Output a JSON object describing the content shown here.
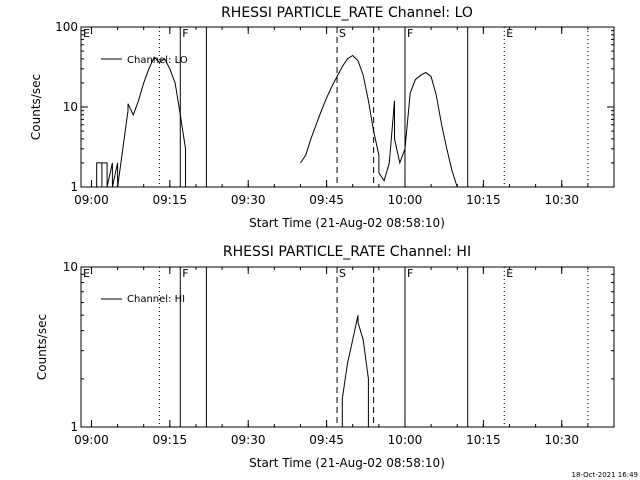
{
  "timestamp": "18-Oct-2021 16:49",
  "chart_data": [
    {
      "type": "line",
      "title": "RHESSI PARTICLE_RATE Channel: LO",
      "xlabel": "Start Time (21-Aug-02 08:58:10)",
      "ylabel": "Counts/sec",
      "scale": "log",
      "ylim": [
        1,
        100
      ],
      "yticks": [
        {
          "value": 1,
          "label": "1"
        },
        {
          "value": 10,
          "label": "10"
        },
        {
          "value": 100,
          "label": "100"
        }
      ],
      "xlim": [
        "08:58",
        "10:40"
      ],
      "xticks": [
        "09:00",
        "09:15",
        "09:30",
        "09:45",
        "10:00",
        "10:15",
        "10:30"
      ],
      "legend": {
        "label": "Channel: LO",
        "placement": "top-left"
      },
      "markers": [
        {
          "time": "08:58",
          "style": "none",
          "label": "E"
        },
        {
          "time": "09:13",
          "style": "dotted",
          "label": ""
        },
        {
          "time": "09:17",
          "style": "solid",
          "label": "F"
        },
        {
          "time": "09:22",
          "style": "solid",
          "label": ""
        },
        {
          "time": "09:47",
          "style": "dashed",
          "label": "S"
        },
        {
          "time": "09:54",
          "style": "dashed",
          "label": ""
        },
        {
          "time": "10:00",
          "style": "solid",
          "label": "F"
        },
        {
          "time": "10:12",
          "style": "solid",
          "label": ""
        },
        {
          "time": "10:19",
          "style": "dotted",
          "label": "E"
        },
        {
          "time": "10:35",
          "style": "dotted",
          "label": ""
        }
      ],
      "series": [
        {
          "name": "Channel: LO",
          "segments": [
            [
              [
                "09:01",
                1
              ],
              [
                "09:01",
                2
              ],
              [
                "09:02",
                2
              ],
              [
                "09:02",
                1
              ],
              [
                "09:02",
                2
              ],
              [
                "09:03",
                2
              ],
              [
                "09:03",
                1
              ],
              [
                "09:04",
                2
              ],
              [
                "09:04",
                1
              ],
              [
                "09:05",
                2
              ],
              [
                "09:05",
                1
              ],
              [
                "09:06",
                3
              ],
              [
                "09:07",
                9
              ],
              [
                "09:07",
                11
              ],
              [
                "09:08",
                8
              ],
              [
                "09:09",
                12
              ],
              [
                "09:10",
                20
              ],
              [
                "09:11",
                30
              ],
              [
                "09:12",
                42
              ],
              [
                "09:13",
                36
              ],
              [
                "09:14",
                40
              ],
              [
                "09:15",
                30
              ],
              [
                "09:16",
                20
              ],
              [
                "09:17",
                8
              ],
              [
                "09:18",
                3
              ],
              [
                "09:18",
                1
              ]
            ],
            [
              [
                "09:40",
                2
              ],
              [
                "09:41",
                2.5
              ],
              [
                "09:42",
                4
              ],
              [
                "09:43",
                6
              ],
              [
                "09:44",
                9
              ],
              [
                "09:45",
                13
              ],
              [
                "09:46",
                18
              ],
              [
                "09:47",
                24
              ],
              [
                "09:48",
                32
              ],
              [
                "09:49",
                40
              ],
              [
                "09:50",
                44
              ],
              [
                "09:51",
                38
              ],
              [
                "09:52",
                25
              ],
              [
                "09:53",
                12
              ],
              [
                "09:54",
                5
              ],
              [
                "09:55",
                2.5
              ],
              [
                "09:55",
                1.5
              ],
              [
                "09:56",
                1.2
              ],
              [
                "09:57",
                2
              ],
              [
                "09:58",
                12
              ],
              [
                "09:58",
                4
              ],
              [
                "09:59",
                2
              ],
              [
                "10:00",
                3
              ],
              [
                "10:01",
                15
              ],
              [
                "10:02",
                22
              ],
              [
                "10:03",
                25
              ],
              [
                "10:04",
                27
              ],
              [
                "10:05",
                24
              ],
              [
                "10:06",
                14
              ],
              [
                "10:07",
                6
              ],
              [
                "10:08",
                3
              ],
              [
                "10:09",
                1.6
              ],
              [
                "10:10",
                1
              ]
            ]
          ]
        }
      ]
    },
    {
      "type": "line",
      "title": "RHESSI PARTICLE_RATE Channel: HI",
      "xlabel": "Start Time (21-Aug-02 08:58:10)",
      "ylabel": "Counts/sec",
      "scale": "log",
      "ylim": [
        1,
        10
      ],
      "yticks": [
        {
          "value": 1,
          "label": "1"
        },
        {
          "value": 10,
          "label": "10"
        }
      ],
      "xlim": [
        "08:58",
        "10:40"
      ],
      "xticks": [
        "09:00",
        "09:15",
        "09:30",
        "09:45",
        "10:00",
        "10:15",
        "10:30"
      ],
      "legend": {
        "label": "Channel: HI",
        "placement": "top-left"
      },
      "markers": [
        {
          "time": "08:58",
          "style": "none",
          "label": "E"
        },
        {
          "time": "09:13",
          "style": "dotted",
          "label": ""
        },
        {
          "time": "09:17",
          "style": "solid",
          "label": "F"
        },
        {
          "time": "09:22",
          "style": "solid",
          "label": ""
        },
        {
          "time": "09:47",
          "style": "dashed",
          "label": "S"
        },
        {
          "time": "09:54",
          "style": "dashed",
          "label": ""
        },
        {
          "time": "10:00",
          "style": "solid",
          "label": "F"
        },
        {
          "time": "10:12",
          "style": "solid",
          "label": ""
        },
        {
          "time": "10:19",
          "style": "dotted",
          "label": "E"
        },
        {
          "time": "10:35",
          "style": "dotted",
          "label": ""
        }
      ],
      "series": [
        {
          "name": "Channel: HI",
          "segments": [
            [
              [
                "09:48",
                1
              ],
              [
                "09:48",
                1.5
              ],
              [
                "09:49",
                2.5
              ],
              [
                "09:50",
                3.5
              ],
              [
                "09:51",
                5
              ],
              [
                "09:51",
                4.5
              ],
              [
                "09:52",
                3.5
              ],
              [
                "09:53",
                2
              ],
              [
                "09:53",
                1
              ]
            ]
          ]
        }
      ]
    }
  ]
}
